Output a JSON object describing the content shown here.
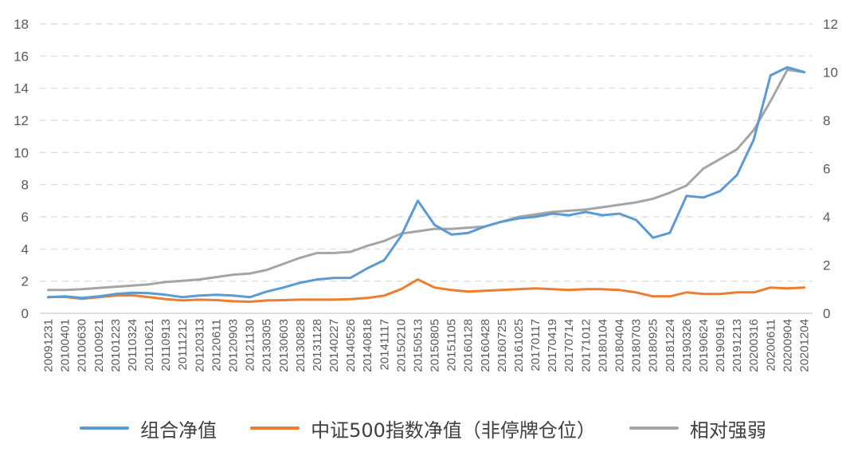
{
  "chart_data": {
    "type": "line",
    "grid": true,
    "legend_position": "bottom",
    "x_tick_labels": [
      "20091231",
      "20100401",
      "20100630",
      "20100921",
      "20101223",
      "20110324",
      "20110621",
      "20110913",
      "20111212",
      "20120313",
      "20120611",
      "20120903",
      "20121130",
      "20130305",
      "20130603",
      "20130828",
      "20131128",
      "20140227",
      "20140526",
      "20140818",
      "20141117",
      "20150210",
      "20150513",
      "20150805",
      "20151105",
      "20160128",
      "20160428",
      "20160725",
      "20161025",
      "20170117",
      "20170419",
      "20170714",
      "20171012",
      "20180104",
      "20180404",
      "20180703",
      "20180925",
      "20181224",
      "20190326",
      "20190624",
      "20190916",
      "20191213",
      "20200316",
      "20200611",
      "20200904",
      "20201204"
    ],
    "y_left": {
      "ylim": [
        0,
        18
      ],
      "ticks": [
        0,
        2,
        4,
        6,
        8,
        10,
        12,
        14,
        16,
        18
      ]
    },
    "y_right": {
      "ylim": [
        0,
        12
      ],
      "ticks": [
        0,
        2,
        4,
        6,
        8,
        10,
        12
      ]
    },
    "series": [
      {
        "name": "组合净值",
        "color": "#5B9BD5",
        "axis": "left",
        "values": [
          1.0,
          1.05,
          0.95,
          1.05,
          1.2,
          1.28,
          1.25,
          1.15,
          1.0,
          1.1,
          1.15,
          1.1,
          1.0,
          1.35,
          1.6,
          1.9,
          2.1,
          2.2,
          2.2,
          2.8,
          3.3,
          4.8,
          7.0,
          5.5,
          4.9,
          5.0,
          5.4,
          5.7,
          5.9,
          6.0,
          6.2,
          6.1,
          6.3,
          6.1,
          6.2,
          5.8,
          4.7,
          5.0,
          7.3,
          7.2,
          7.6,
          8.6,
          10.8,
          14.8,
          15.3,
          15.0
        ]
      },
      {
        "name": "中证500指数净值（非停牌仓位）",
        "color": "#ED7D31",
        "axis": "left",
        "values": [
          1.0,
          1.02,
          0.9,
          1.0,
          1.1,
          1.12,
          1.0,
          0.88,
          0.8,
          0.85,
          0.82,
          0.75,
          0.72,
          0.8,
          0.82,
          0.85,
          0.85,
          0.85,
          0.88,
          0.95,
          1.1,
          1.5,
          2.1,
          1.6,
          1.45,
          1.35,
          1.4,
          1.45,
          1.5,
          1.55,
          1.5,
          1.45,
          1.5,
          1.5,
          1.45,
          1.3,
          1.05,
          1.05,
          1.3,
          1.2,
          1.2,
          1.3,
          1.3,
          1.6,
          1.55,
          1.6
        ]
      },
      {
        "name": "相对强弱",
        "color": "#A5A5A5",
        "axis": "right",
        "values": [
          0.97,
          0.97,
          1.0,
          1.05,
          1.1,
          1.15,
          1.2,
          1.3,
          1.35,
          1.4,
          1.5,
          1.6,
          1.65,
          1.8,
          2.05,
          2.3,
          2.5,
          2.5,
          2.55,
          2.8,
          3.0,
          3.3,
          3.4,
          3.5,
          3.5,
          3.55,
          3.6,
          3.8,
          4.0,
          4.1,
          4.2,
          4.25,
          4.3,
          4.4,
          4.5,
          4.6,
          4.75,
          5.0,
          5.3,
          6.0,
          6.4,
          6.8,
          7.6,
          8.8,
          10.1,
          10.0
        ]
      }
    ]
  }
}
